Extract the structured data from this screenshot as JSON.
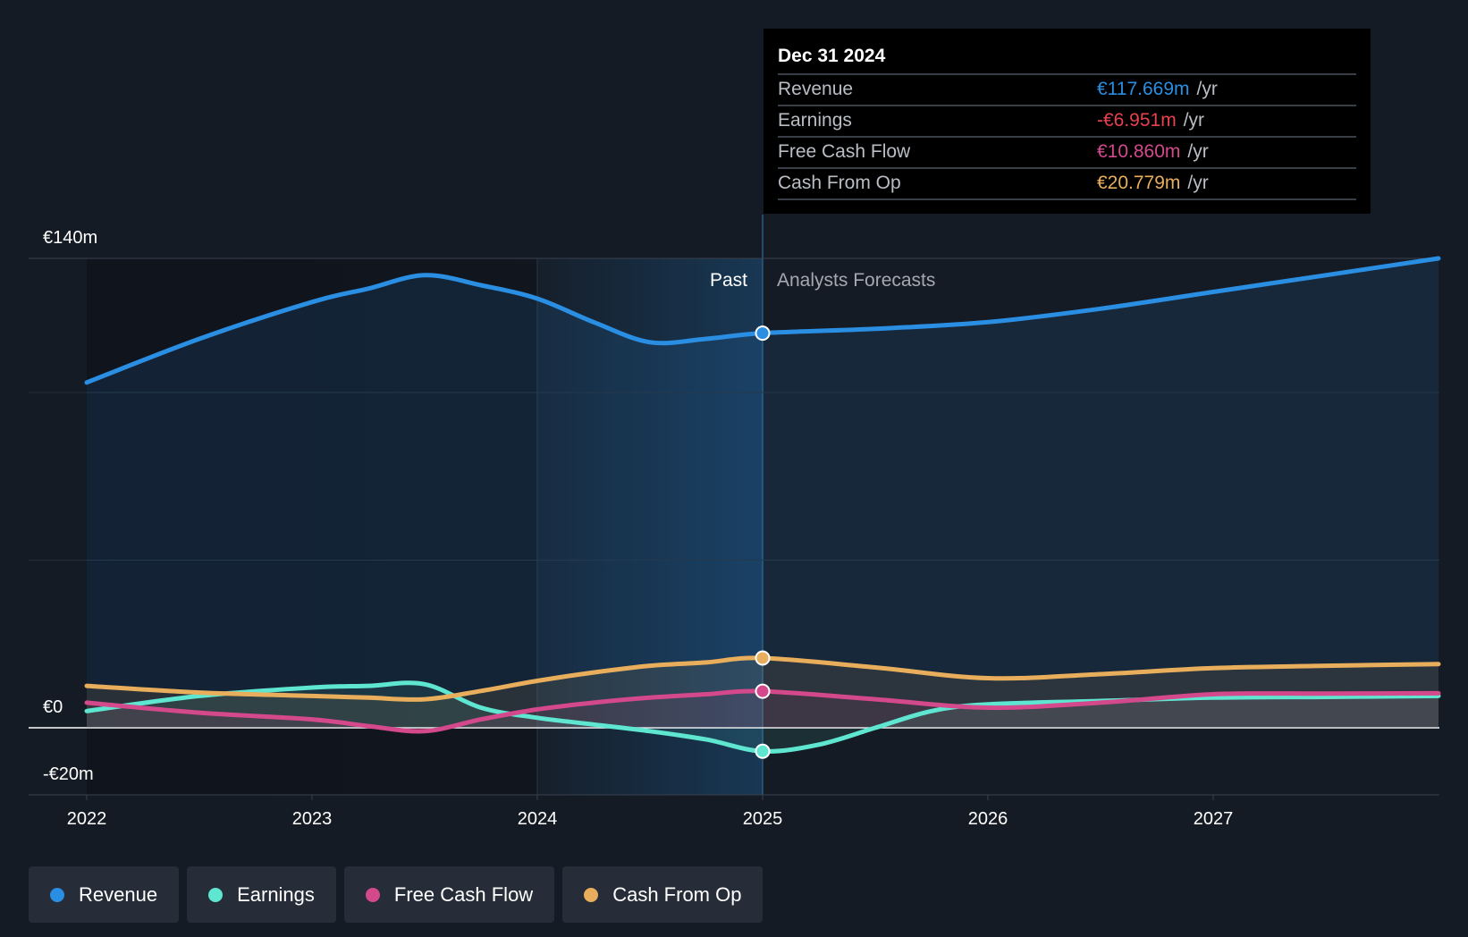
{
  "chart_data": {
    "type": "line",
    "y_labels": {
      "top": "€140m",
      "zero": "€0",
      "bottom": "-€20m"
    },
    "ylim": [
      -20,
      140
    ],
    "x_ticks": [
      "2022",
      "2023",
      "2024",
      "2025",
      "2026",
      "2027"
    ],
    "regions": {
      "past_label": "Past",
      "forecast_label": "Analysts Forecasts"
    },
    "series": [
      {
        "name": "Revenue",
        "color": "#2a8ee3",
        "x": [
          2022.0,
          2022.5,
          2023.0,
          2023.25,
          2023.5,
          2023.75,
          2024.0,
          2024.25,
          2024.5,
          2024.75,
          2025.0,
          2025.5,
          2026.0,
          2026.5,
          2027.0,
          2027.5,
          2028.0
        ],
        "values": [
          103,
          116,
          127,
          131,
          135,
          132,
          128,
          121,
          115,
          116,
          117.7,
          119,
          121,
          125,
          130,
          135,
          140
        ]
      },
      {
        "name": "Earnings",
        "color": "#5ee6d0",
        "x": [
          2022.0,
          2022.5,
          2023.0,
          2023.25,
          2023.5,
          2023.75,
          2024.0,
          2024.25,
          2024.5,
          2024.75,
          2025.0,
          2025.25,
          2025.5,
          2025.75,
          2026.0,
          2026.5,
          2027.0,
          2027.5,
          2028.0
        ],
        "values": [
          5,
          9.5,
          12,
          12.5,
          13,
          6,
          3,
          1,
          -1,
          -3.5,
          -7.0,
          -5,
          0,
          5,
          7,
          8,
          9,
          9.2,
          9.5
        ]
      },
      {
        "name": "Free Cash Flow",
        "color": "#d4488c",
        "x": [
          2022.0,
          2022.5,
          2023.0,
          2023.25,
          2023.5,
          2023.75,
          2024.0,
          2024.25,
          2024.5,
          2024.75,
          2025.0,
          2025.5,
          2026.0,
          2026.5,
          2027.0,
          2027.5,
          2028.0
        ],
        "values": [
          7.5,
          4.5,
          2.5,
          0.5,
          -1,
          2.5,
          5.5,
          7.5,
          9,
          10,
          10.9,
          8.5,
          6,
          7.5,
          10,
          10.2,
          10.3
        ]
      },
      {
        "name": "Cash From Op",
        "color": "#e8ae5c",
        "x": [
          2022.0,
          2022.5,
          2023.0,
          2023.25,
          2023.5,
          2023.75,
          2024.0,
          2024.25,
          2024.5,
          2024.75,
          2025.0,
          2025.5,
          2026.0,
          2026.5,
          2027.0,
          2027.5,
          2028.0
        ],
        "values": [
          12.5,
          10.5,
          9.5,
          9,
          8.5,
          11,
          14,
          16.5,
          18.5,
          19.5,
          20.8,
          18,
          14.8,
          16,
          17.8,
          18.5,
          19
        ]
      }
    ],
    "highlight_x": 2025.0
  },
  "tooltip": {
    "date": "Dec 31 2024",
    "rows": [
      {
        "label": "Revenue",
        "value": "€117.669m",
        "unit": "/yr",
        "color": "#2a8ee3"
      },
      {
        "label": "Earnings",
        "value": "-€6.951m",
        "unit": "/yr",
        "color": "#e8414f"
      },
      {
        "label": "Free Cash Flow",
        "value": "€10.860m",
        "unit": "/yr",
        "color": "#d4488c"
      },
      {
        "label": "Cash From Op",
        "value": "€20.779m",
        "unit": "/yr",
        "color": "#e8ae5c"
      }
    ]
  },
  "legend": [
    {
      "label": "Revenue",
      "color": "#2a8ee3"
    },
    {
      "label": "Earnings",
      "color": "#5ee6d0"
    },
    {
      "label": "Free Cash Flow",
      "color": "#d4488c"
    },
    {
      "label": "Cash From Op",
      "color": "#e8ae5c"
    }
  ]
}
